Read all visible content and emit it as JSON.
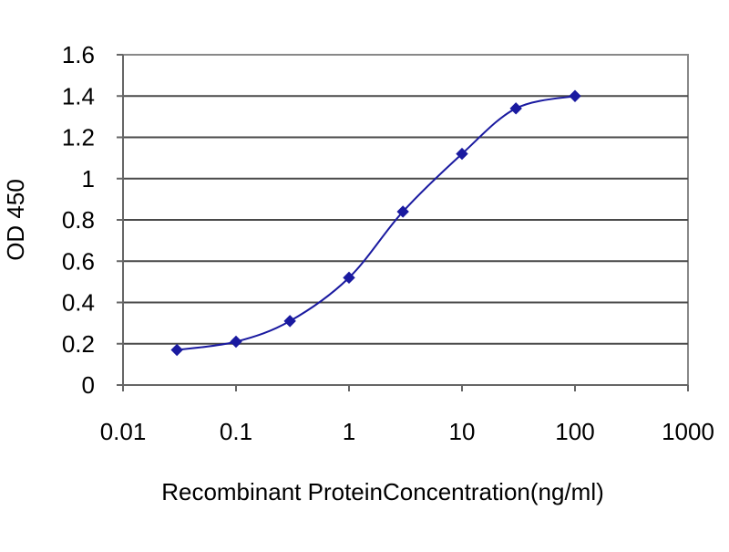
{
  "chart_data": {
    "type": "line",
    "title": "",
    "xlabel": "Recombinant ProteinConcentration(ng/ml)",
    "ylabel": "OD 450",
    "x_scale": "log",
    "xlim": [
      0.01,
      1000
    ],
    "ylim": [
      0,
      1.6
    ],
    "x_ticks": [
      0.01,
      0.1,
      1,
      10,
      100,
      1000
    ],
    "x_tick_labels": [
      "0.01",
      "0.1",
      "1",
      "10",
      "100",
      "1000"
    ],
    "y_ticks": [
      0,
      0.2,
      0.4,
      0.6,
      0.8,
      1,
      1.2,
      1.4,
      1.6
    ],
    "y_tick_labels": [
      "0",
      "0.2",
      "0.4",
      "0.6",
      "0.8",
      "1",
      "1.2",
      "1.4",
      "1.6"
    ],
    "grid": "horizontal",
    "legend": "none",
    "series": [
      {
        "x": [
          0.03,
          0.1,
          0.3,
          1,
          3,
          10,
          30,
          100
        ],
        "y": [
          0.17,
          0.21,
          0.31,
          0.52,
          0.84,
          1.12,
          1.34,
          1.4
        ],
        "color": "#1a1aa0"
      }
    ]
  }
}
